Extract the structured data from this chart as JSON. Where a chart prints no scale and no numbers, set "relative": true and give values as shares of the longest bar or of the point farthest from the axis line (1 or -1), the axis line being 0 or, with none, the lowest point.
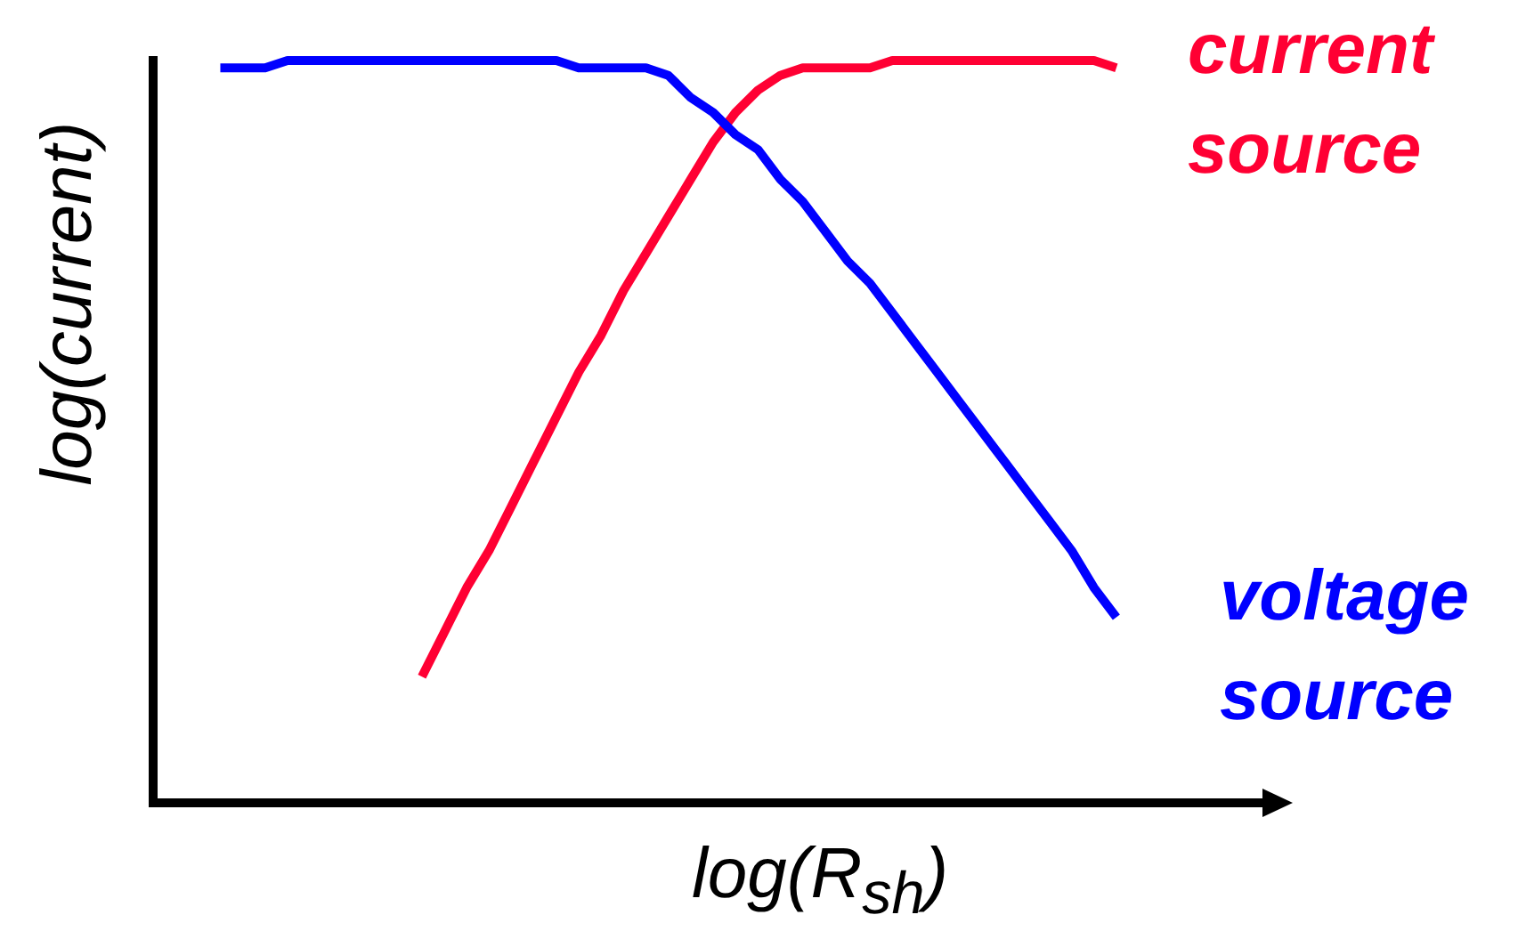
{
  "chart_data": {
    "type": "line",
    "relative": true,
    "xlabel": "log(R$_{sh}$)",
    "ylabel": "log(current)",
    "marker": "none",
    "line_style": "solid",
    "grid": false,
    "legend": false,
    "categories": [
      null,
      null,
      null,
      null,
      null,
      null,
      null,
      null,
      null,
      null,
      null,
      null,
      null,
      null,
      null,
      null,
      null,
      null,
      null,
      null,
      null,
      null,
      null,
      null,
      null,
      null,
      null,
      null,
      null,
      null,
      null,
      null,
      null,
      null,
      null,
      null,
      null,
      null,
      null,
      null,
      null,
      null,
      null,
      null,
      null,
      null,
      null,
      null,
      null,
      null,
      null
    ],
    "series": [
      {
        "name": "voltage source",
        "color": "#0000ff",
        "values": [
          null,
          null,
          null,
          0.99,
          0.99,
          0.99,
          1.0,
          1.0,
          1.0,
          1.0,
          1.0,
          1.0,
          1.0,
          1.0,
          1.0,
          1.0,
          1.0,
          1.0,
          1.0,
          0.99,
          0.99,
          0.99,
          0.99,
          0.98,
          0.95,
          0.93,
          0.9,
          0.88,
          0.84,
          0.81,
          0.77,
          0.73,
          0.7,
          0.66,
          0.62,
          0.58,
          0.54,
          0.5,
          0.46,
          0.42,
          0.38,
          0.34,
          0.29,
          0.25,
          null,
          null,
          null,
          null,
          null,
          null,
          null
        ]
      },
      {
        "name": "current source",
        "color": "#ff0033",
        "values": [
          null,
          null,
          null,
          null,
          null,
          null,
          null,
          null,
          null,
          null,
          null,
          null,
          0.17,
          0.23,
          0.29,
          0.34,
          0.4,
          0.46,
          0.52,
          0.58,
          0.63,
          0.69,
          0.74,
          0.79,
          0.84,
          0.89,
          0.93,
          0.96,
          0.98,
          0.99,
          0.99,
          0.99,
          0.99,
          1.0,
          1.0,
          1.0,
          1.0,
          1.0,
          1.0,
          1.0,
          1.0,
          1.0,
          1.0,
          0.99,
          null,
          null,
          null,
          null,
          null,
          null,
          null
        ]
      }
    ]
  }
}
